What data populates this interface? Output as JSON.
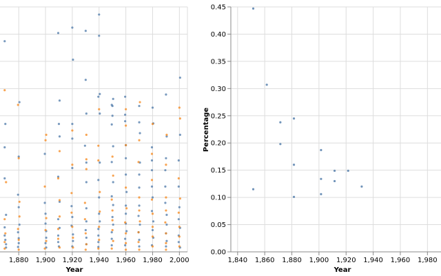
{
  "colors": {
    "series_a": "#4c78a8",
    "series_b": "#f58518",
    "grid": "#dddddd",
    "axis": "#888888"
  },
  "chart_data": [
    {
      "type": "scatter",
      "title": "",
      "xlabel": "Year",
      "ylabel": "",
      "xlim": [
        1866,
        2006
      ],
      "ylim": [
        0,
        0.45
      ],
      "grid": true,
      "xticks": [
        "1,880",
        "1,900",
        "1,920",
        "1,940",
        "1,960",
        "1,980",
        "2,000"
      ],
      "xtick_values": [
        1880,
        1900,
        1920,
        1940,
        1960,
        1980,
        2000
      ],
      "series": [
        {
          "name": "blue",
          "points": [
            [
              1870,
              0.387
            ],
            [
              1870,
              0.235
            ],
            [
              1870,
              0.192
            ],
            [
              1870,
              0.135
            ],
            [
              1870,
              0.068
            ],
            [
              1870,
              0.045
            ],
            [
              1870,
              0.03
            ],
            [
              1870,
              0.022
            ],
            [
              1870,
              0.014
            ],
            [
              1870,
              0.008
            ],
            [
              1880,
              0.275
            ],
            [
              1880,
              0.175
            ],
            [
              1880,
              0.105
            ],
            [
              1880,
              0.082
            ],
            [
              1880,
              0.05
            ],
            [
              1880,
              0.036
            ],
            [
              1880,
              0.025
            ],
            [
              1880,
              0.016
            ],
            [
              1880,
              0.009
            ],
            [
              1900,
              0.18
            ],
            [
              1900,
              0.09
            ],
            [
              1900,
              0.07
            ],
            [
              1900,
              0.052
            ],
            [
              1900,
              0.038
            ],
            [
              1900,
              0.026
            ],
            [
              1900,
              0.016
            ],
            [
              1900,
              0.008
            ],
            [
              1910,
              0.402
            ],
            [
              1910,
              0.278
            ],
            [
              1910,
              0.235
            ],
            [
              1910,
              0.212
            ],
            [
              1910,
              0.138
            ],
            [
              1910,
              0.092
            ],
            [
              1910,
              0.06
            ],
            [
              1910,
              0.044
            ],
            [
              1910,
              0.03
            ],
            [
              1910,
              0.018
            ],
            [
              1910,
              0.01
            ],
            [
              1920,
              0.412
            ],
            [
              1920,
              0.353
            ],
            [
              1920,
              0.235
            ],
            [
              1920,
              0.208
            ],
            [
              1920,
              0.154
            ],
            [
              1920,
              0.084
            ],
            [
              1920,
              0.064
            ],
            [
              1920,
              0.048
            ],
            [
              1920,
              0.032
            ],
            [
              1920,
              0.02
            ],
            [
              1920,
              0.01
            ],
            [
              1930,
              0.406
            ],
            [
              1930,
              0.316
            ],
            [
              1930,
              0.254
            ],
            [
              1930,
              0.195
            ],
            [
              1930,
              0.164
            ],
            [
              1930,
              0.128
            ],
            [
              1930,
              0.08
            ],
            [
              1930,
              0.056
            ],
            [
              1930,
              0.04
            ],
            [
              1930,
              0.026
            ],
            [
              1930,
              0.014
            ],
            [
              1940,
              0.436
            ],
            [
              1940,
              0.397
            ],
            [
              1940,
              0.29
            ],
            [
              1940,
              0.285
            ],
            [
              1940,
              0.254
            ],
            [
              1940,
              0.164
            ],
            [
              1940,
              0.132
            ],
            [
              1940,
              0.1
            ],
            [
              1940,
              0.07
            ],
            [
              1940,
              0.056
            ],
            [
              1940,
              0.042
            ],
            [
              1940,
              0.03
            ],
            [
              1940,
              0.018
            ],
            [
              1940,
              0.009
            ],
            [
              1950,
              0.281
            ],
            [
              1950,
              0.27
            ],
            [
              1950,
              0.268
            ],
            [
              1950,
              0.25
            ],
            [
              1950,
              0.234
            ],
            [
              1950,
              0.194
            ],
            [
              1950,
              0.165
            ],
            [
              1950,
              0.128
            ],
            [
              1950,
              0.102
            ],
            [
              1950,
              0.086
            ],
            [
              1950,
              0.064
            ],
            [
              1950,
              0.05
            ],
            [
              1950,
              0.036
            ],
            [
              1950,
              0.024
            ],
            [
              1950,
              0.012
            ],
            [
              1960,
              0.285
            ],
            [
              1960,
              0.252
            ],
            [
              1960,
              0.24
            ],
            [
              1960,
              0.196
            ],
            [
              1960,
              0.172
            ],
            [
              1960,
              0.142
            ],
            [
              1960,
              0.11
            ],
            [
              1960,
              0.085
            ],
            [
              1960,
              0.07
            ],
            [
              1960,
              0.052
            ],
            [
              1960,
              0.038
            ],
            [
              1960,
              0.024
            ],
            [
              1960,
              0.012
            ],
            [
              1970,
              0.268
            ],
            [
              1970,
              0.238
            ],
            [
              1970,
              0.218
            ],
            [
              1970,
              0.164
            ],
            [
              1970,
              0.142
            ],
            [
              1970,
              0.118
            ],
            [
              1970,
              0.085
            ],
            [
              1970,
              0.066
            ],
            [
              1970,
              0.05
            ],
            [
              1970,
              0.036
            ],
            [
              1970,
              0.022
            ],
            [
              1970,
              0.01
            ],
            [
              1980,
              0.265
            ],
            [
              1980,
              0.236
            ],
            [
              1980,
              0.192
            ],
            [
              1980,
              0.168
            ],
            [
              1980,
              0.15
            ],
            [
              1980,
              0.12
            ],
            [
              1980,
              0.1
            ],
            [
              1980,
              0.075
            ],
            [
              1980,
              0.056
            ],
            [
              1980,
              0.04
            ],
            [
              1980,
              0.026
            ],
            [
              1980,
              0.012
            ],
            [
              1990,
              0.289
            ],
            [
              1990,
              0.212
            ],
            [
              1990,
              0.172
            ],
            [
              1990,
              0.15
            ],
            [
              1990,
              0.12
            ],
            [
              1990,
              0.09
            ],
            [
              1990,
              0.068
            ],
            [
              1990,
              0.05
            ],
            [
              1990,
              0.034
            ],
            [
              1990,
              0.02
            ],
            [
              1990,
              0.01
            ],
            [
              2000,
              0.32
            ],
            [
              2000,
              0.215
            ],
            [
              2000,
              0.168
            ],
            [
              2000,
              0.12
            ],
            [
              2000,
              0.082
            ],
            [
              2000,
              0.06
            ],
            [
              2000,
              0.044
            ],
            [
              2000,
              0.03
            ],
            [
              2000,
              0.018
            ],
            [
              2000,
              0.008
            ]
          ]
        },
        {
          "name": "orange",
          "points": [
            [
              1870,
              0.297
            ],
            [
              1870,
              0.128
            ],
            [
              1870,
              0.06
            ],
            [
              1870,
              0.034
            ],
            [
              1870,
              0.018
            ],
            [
              1870,
              0.006
            ],
            [
              1880,
              0.27
            ],
            [
              1880,
              0.172
            ],
            [
              1880,
              0.092
            ],
            [
              1880,
              0.065
            ],
            [
              1880,
              0.042
            ],
            [
              1880,
              0.022
            ],
            [
              1880,
              0.004
            ],
            [
              1900,
              0.215
            ],
            [
              1900,
              0.205
            ],
            [
              1900,
              0.12
            ],
            [
              1900,
              0.062
            ],
            [
              1900,
              0.04
            ],
            [
              1900,
              0.02
            ],
            [
              1900,
              0.006
            ],
            [
              1910,
              0.185
            ],
            [
              1910,
              0.135
            ],
            [
              1910,
              0.095
            ],
            [
              1910,
              0.065
            ],
            [
              1910,
              0.042
            ],
            [
              1910,
              0.024
            ],
            [
              1910,
              0.008
            ],
            [
              1920,
              0.223
            ],
            [
              1920,
              0.16
            ],
            [
              1920,
              0.108
            ],
            [
              1920,
              0.072
            ],
            [
              1920,
              0.046
            ],
            [
              1920,
              0.026
            ],
            [
              1920,
              0.008
            ],
            [
              1930,
              0.215
            ],
            [
              1930,
              0.17
            ],
            [
              1930,
              0.152
            ],
            [
              1930,
              0.09
            ],
            [
              1930,
              0.06
            ],
            [
              1930,
              0.034
            ],
            [
              1930,
              0.014
            ],
            [
              1930,
              0.004
            ],
            [
              1940,
              0.262
            ],
            [
              1940,
              0.195
            ],
            [
              1940,
              0.168
            ],
            [
              1940,
              0.11
            ],
            [
              1940,
              0.074
            ],
            [
              1940,
              0.046
            ],
            [
              1940,
              0.022
            ],
            [
              1940,
              0.006
            ],
            [
              1950,
              0.175
            ],
            [
              1950,
              0.14
            ],
            [
              1950,
              0.096
            ],
            [
              1950,
              0.076
            ],
            [
              1950,
              0.058
            ],
            [
              1950,
              0.04
            ],
            [
              1950,
              0.02
            ],
            [
              1950,
              0.006
            ],
            [
              1960,
              0.262
            ],
            [
              1960,
              0.232
            ],
            [
              1960,
              0.196
            ],
            [
              1960,
              0.118
            ],
            [
              1960,
              0.08
            ],
            [
              1960,
              0.054
            ],
            [
              1960,
              0.034
            ],
            [
              1960,
              0.016
            ],
            [
              1960,
              0.004
            ],
            [
              1970,
              0.275
            ],
            [
              1970,
              0.205
            ],
            [
              1970,
              0.165
            ],
            [
              1970,
              0.1
            ],
            [
              1970,
              0.076
            ],
            [
              1970,
              0.056
            ],
            [
              1970,
              0.036
            ],
            [
              1970,
              0.018
            ],
            [
              1970,
              0.004
            ],
            [
              1980,
              0.235
            ],
            [
              1980,
              0.18
            ],
            [
              1980,
              0.132
            ],
            [
              1980,
              0.096
            ],
            [
              1980,
              0.07
            ],
            [
              1980,
              0.046
            ],
            [
              1980,
              0.028
            ],
            [
              1980,
              0.01
            ],
            [
              1990,
              0.215
            ],
            [
              1990,
              0.16
            ],
            [
              1990,
              0.1
            ],
            [
              1990,
              0.076
            ],
            [
              1990,
              0.054
            ],
            [
              1990,
              0.034
            ],
            [
              1990,
              0.016
            ],
            [
              1990,
              0.004
            ],
            [
              2000,
              0.265
            ],
            [
              2000,
              0.245
            ],
            [
              2000,
              0.135
            ],
            [
              2000,
              0.098
            ],
            [
              2000,
              0.072
            ],
            [
              2000,
              0.046
            ],
            [
              2000,
              0.028
            ],
            [
              2000,
              0.01
            ]
          ]
        }
      ]
    },
    {
      "type": "scatter",
      "title": "",
      "xlabel": "Year",
      "ylabel": "Percentage",
      "xlim": [
        1835,
        1990
      ],
      "ylim": [
        0,
        0.45
      ],
      "grid": true,
      "xticks": [
        "1,840",
        "1,860",
        "1,880",
        "1,900",
        "1,920",
        "1,940",
        "1,960",
        "1,980"
      ],
      "xtick_values": [
        1840,
        1860,
        1880,
        1900,
        1920,
        1940,
        1960,
        1980
      ],
      "yticks": [
        "0.00",
        "0.05",
        "0.10",
        "0.15",
        "0.20",
        "0.25",
        "0.30",
        "0.35",
        "0.40",
        "0.45"
      ],
      "ytick_values": [
        0,
        0.05,
        0.1,
        0.15,
        0.2,
        0.25,
        0.3,
        0.35,
        0.4,
        0.45
      ],
      "series": [
        {
          "name": "blue",
          "points": [
            [
              1850,
              0.447
            ],
            [
              1850,
              0.115
            ],
            [
              1860,
              0.307
            ],
            [
              1870,
              0.238
            ],
            [
              1870,
              0.198
            ],
            [
              1880,
              0.245
            ],
            [
              1880,
              0.16
            ],
            [
              1880,
              0.101
            ],
            [
              1900,
              0.187
            ],
            [
              1900,
              0.134
            ],
            [
              1900,
              0.106
            ],
            [
              1910,
              0.149
            ],
            [
              1910,
              0.13
            ],
            [
              1920,
              0.149
            ],
            [
              1930,
              0.12
            ]
          ]
        }
      ]
    }
  ]
}
